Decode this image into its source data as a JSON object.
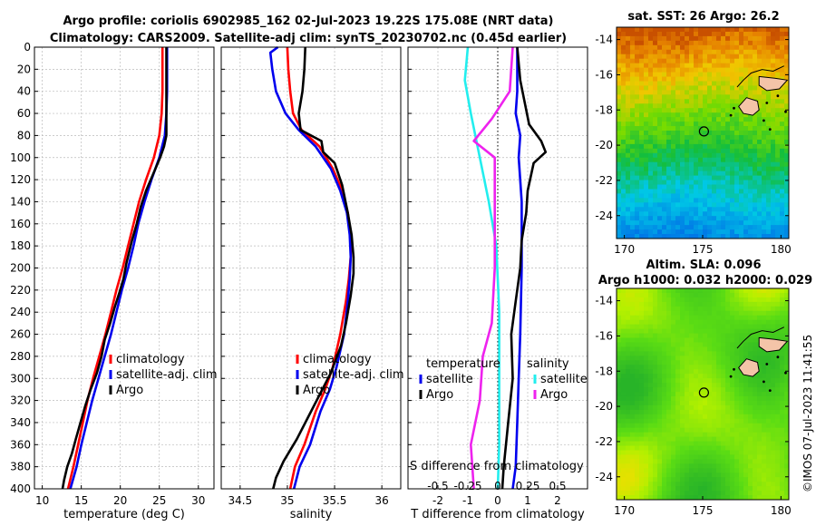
{
  "title_line1": "Argo profile: coriolis 6902985_162 02-Jul-2023 19.22S 175.08E (NRT data)",
  "title_line2": "Climatology: CARS2009. Satellite-adj clim: synTS_20230702.nc (0.45d earlier)",
  "copyright": "©IMOS 07-Jul-2023 11:41:55",
  "colors": {
    "climatology": "#ff0000",
    "satellite": "#0000ee",
    "argo": "#000000",
    "sal_sat": "#22eeee",
    "sal_argo": "#ee22ee"
  },
  "chart_data": [
    {
      "type": "line",
      "id": "temperature",
      "xlabel": "temperature (deg C)",
      "xlim": [
        9,
        32
      ],
      "ylim": [
        0,
        400
      ],
      "reverse_y": true,
      "xticks": [
        10,
        15,
        20,
        25,
        30
      ],
      "yticks": [
        0,
        20,
        40,
        60,
        80,
        100,
        120,
        140,
        160,
        180,
        200,
        220,
        240,
        260,
        280,
        300,
        320,
        340,
        360,
        380,
        400
      ],
      "legend": [
        "climatology",
        "satellite-adj. clim",
        "Argo"
      ],
      "series": [
        {
          "name": "climatology",
          "color_key": "climatology",
          "points": [
            [
              25.4,
              0
            ],
            [
              25.4,
              40
            ],
            [
              25.3,
              60
            ],
            [
              25.0,
              80
            ],
            [
              24.3,
              100
            ],
            [
              23.3,
              120
            ],
            [
              22.4,
              140
            ],
            [
              21.7,
              160
            ],
            [
              21.0,
              180
            ],
            [
              20.3,
              200
            ],
            [
              19.5,
              220
            ],
            [
              18.8,
              240
            ],
            [
              18.1,
              260
            ],
            [
              17.3,
              280
            ],
            [
              16.5,
              300
            ],
            [
              15.8,
              320
            ],
            [
              15.2,
              340
            ],
            [
              14.6,
              360
            ],
            [
              14.0,
              380
            ],
            [
              13.3,
              400
            ]
          ]
        },
        {
          "name": "satellite-adj. clim",
          "color_key": "satellite",
          "points": [
            [
              26.0,
              0
            ],
            [
              26.0,
              40
            ],
            [
              25.9,
              60
            ],
            [
              25.7,
              80
            ],
            [
              25.0,
              100
            ],
            [
              24.0,
              120
            ],
            [
              23.1,
              140
            ],
            [
              22.3,
              160
            ],
            [
              21.7,
              180
            ],
            [
              21.0,
              200
            ],
            [
              20.2,
              220
            ],
            [
              19.5,
              240
            ],
            [
              18.8,
              260
            ],
            [
              18.0,
              280
            ],
            [
              17.2,
              300
            ],
            [
              16.4,
              320
            ],
            [
              15.7,
              340
            ],
            [
              15.0,
              360
            ],
            [
              14.4,
              380
            ],
            [
              13.6,
              400
            ]
          ]
        },
        {
          "name": "Argo",
          "color_key": "argo",
          "points": [
            [
              25.9,
              0
            ],
            [
              25.9,
              40
            ],
            [
              25.9,
              60
            ],
            [
              25.9,
              80
            ],
            [
              25.6,
              90
            ],
            [
              25.1,
              100
            ],
            [
              24.2,
              115
            ],
            [
              23.3,
              130
            ],
            [
              22.6,
              145
            ],
            [
              22.1,
              160
            ],
            [
              21.5,
              175
            ],
            [
              20.8,
              195
            ],
            [
              20.4,
              210
            ],
            [
              19.9,
              222
            ],
            [
              19.3,
              235
            ],
            [
              18.7,
              250
            ],
            [
              18.0,
              265
            ],
            [
              17.6,
              280
            ],
            [
              17.0,
              295
            ],
            [
              16.2,
              310
            ],
            [
              15.5,
              325
            ],
            [
              14.9,
              340
            ],
            [
              14.3,
              355
            ],
            [
              13.8,
              368
            ],
            [
              13.2,
              380
            ],
            [
              12.8,
              392
            ],
            [
              12.6,
              400
            ]
          ]
        }
      ]
    },
    {
      "type": "line",
      "id": "salinity",
      "xlabel": "salinity",
      "xlim": [
        34.3,
        36.2
      ],
      "ylim": [
        0,
        400
      ],
      "reverse_y": true,
      "xticks": [
        34.5,
        35,
        35.5,
        36
      ],
      "legend": [
        "climatology",
        "satellite-adj. clim",
        "Argo"
      ],
      "series": [
        {
          "name": "climatology",
          "color_key": "climatology",
          "points": [
            [
              35.0,
              0
            ],
            [
              35.01,
              20
            ],
            [
              35.03,
              40
            ],
            [
              35.06,
              60
            ],
            [
              35.15,
              75
            ],
            [
              35.34,
              90
            ],
            [
              35.48,
              110
            ],
            [
              35.58,
              130
            ],
            [
              35.64,
              150
            ],
            [
              35.67,
              170
            ],
            [
              35.67,
              190
            ],
            [
              35.65,
              210
            ],
            [
              35.62,
              230
            ],
            [
              35.56,
              260
            ],
            [
              35.48,
              290
            ],
            [
              35.4,
              310
            ],
            [
              35.3,
              330
            ],
            [
              35.18,
              360
            ],
            [
              35.08,
              380
            ],
            [
              35.03,
              400
            ]
          ]
        },
        {
          "name": "satellite-adj. clim",
          "color_key": "satellite",
          "points": [
            [
              34.9,
              0
            ],
            [
              34.82,
              5
            ],
            [
              34.84,
              20
            ],
            [
              34.88,
              40
            ],
            [
              34.98,
              60
            ],
            [
              35.12,
              75
            ],
            [
              35.3,
              90
            ],
            [
              35.46,
              110
            ],
            [
              35.56,
              130
            ],
            [
              35.63,
              150
            ],
            [
              35.66,
              170
            ],
            [
              35.67,
              190
            ],
            [
              35.66,
              210
            ],
            [
              35.64,
              230
            ],
            [
              35.6,
              260
            ],
            [
              35.52,
              290
            ],
            [
              35.45,
              310
            ],
            [
              35.35,
              330
            ],
            [
              35.24,
              360
            ],
            [
              35.13,
              380
            ],
            [
              35.07,
              400
            ]
          ]
        },
        {
          "name": "Argo",
          "color_key": "argo",
          "points": [
            [
              35.19,
              0
            ],
            [
              35.18,
              20
            ],
            [
              35.16,
              40
            ],
            [
              35.12,
              60
            ],
            [
              35.14,
              75
            ],
            [
              35.36,
              85
            ],
            [
              35.38,
              95
            ],
            [
              35.5,
              105
            ],
            [
              35.58,
              125
            ],
            [
              35.64,
              150
            ],
            [
              35.68,
              170
            ],
            [
              35.7,
              190
            ],
            [
              35.7,
              205
            ],
            [
              35.67,
              225
            ],
            [
              35.62,
              250
            ],
            [
              35.57,
              270
            ],
            [
              35.46,
              295
            ],
            [
              35.34,
              315
            ],
            [
              35.22,
              335
            ],
            [
              35.1,
              355
            ],
            [
              34.96,
              375
            ],
            [
              34.88,
              390
            ],
            [
              34.85,
              400
            ]
          ]
        }
      ]
    },
    {
      "type": "line",
      "id": "difference",
      "xlabel": "T difference from climatology",
      "xlabel2": "S difference from climatology",
      "xlim": [
        -3,
        3
      ],
      "ylim": [
        0,
        400
      ],
      "reverse_y": true,
      "xticks": [
        -2,
        -1,
        0,
        1,
        2
      ],
      "xtick_labels": [
        "-2",
        "-1",
        "0",
        "1",
        "2"
      ],
      "s_ticks": [
        [
          "-0.5",
          -2
        ],
        [
          "-0.25",
          -1
        ],
        [
          "0",
          0
        ],
        [
          "0.25",
          1
        ],
        [
          "0.5",
          2
        ]
      ],
      "legend_temperature": {
        "header": "temperature",
        "items": [
          "satellite",
          "Argo"
        ]
      },
      "legend_salinity": {
        "header": "salinity",
        "items": [
          "satellite",
          "Argo"
        ]
      },
      "series": [
        {
          "name": "T satellite",
          "color_key": "satellite",
          "points": [
            [
              0.65,
              0
            ],
            [
              0.65,
              40
            ],
            [
              0.6,
              60
            ],
            [
              0.75,
              80
            ],
            [
              0.7,
              100
            ],
            [
              0.8,
              140
            ],
            [
              0.8,
              200
            ],
            [
              0.75,
              260
            ],
            [
              0.7,
              300
            ],
            [
              0.65,
              340
            ],
            [
              0.6,
              380
            ],
            [
              0.5,
              400
            ]
          ]
        },
        {
          "name": "T Argo",
          "color_key": "argo",
          "points": [
            [
              0.65,
              0
            ],
            [
              0.75,
              30
            ],
            [
              0.9,
              50
            ],
            [
              1.05,
              70
            ],
            [
              1.45,
              85
            ],
            [
              1.6,
              95
            ],
            [
              1.2,
              105
            ],
            [
              1.0,
              130
            ],
            [
              0.95,
              150
            ],
            [
              0.8,
              175
            ],
            [
              0.75,
              200
            ],
            [
              0.6,
              230
            ],
            [
              0.45,
              260
            ],
            [
              0.5,
              300
            ],
            [
              0.35,
              340
            ],
            [
              0.2,
              380
            ],
            [
              0.15,
              400
            ]
          ]
        },
        {
          "name": "S satellite",
          "color_key": "sal_sat",
          "points": [
            [
              -1.0,
              0
            ],
            [
              -1.1,
              30
            ],
            [
              -0.9,
              60
            ],
            [
              -0.6,
              100
            ],
            [
              -0.3,
              140
            ],
            [
              -0.05,
              180
            ],
            [
              0.05,
              240
            ],
            [
              0.05,
              300
            ],
            [
              0.05,
              360
            ],
            [
              0.0,
              400
            ]
          ]
        },
        {
          "name": "S Argo",
          "color_key": "sal_argo",
          "points": [
            [
              0.5,
              0
            ],
            [
              0.4,
              40
            ],
            [
              -0.2,
              65
            ],
            [
              -0.8,
              85
            ],
            [
              -0.1,
              100
            ],
            [
              -0.1,
              140
            ],
            [
              -0.1,
              200
            ],
            [
              -0.2,
              250
            ],
            [
              -0.5,
              280
            ],
            [
              -0.6,
              320
            ],
            [
              -0.9,
              360
            ],
            [
              -0.8,
              400
            ]
          ]
        }
      ]
    },
    {
      "type": "heatmap",
      "id": "sst_map",
      "title": "sat. SST: 26 Argo: 26.2",
      "xlim": [
        169.5,
        180.5
      ],
      "ylim": [
        -25.3,
        -13.3
      ],
      "xticks": [
        170,
        175,
        180
      ],
      "yticks": [
        -14,
        -16,
        -18,
        -20,
        -22,
        -24
      ],
      "marker": [
        175.08,
        -19.22
      ]
    },
    {
      "type": "heatmap",
      "id": "sla_map",
      "title1": "Altim. SLA: 0.096",
      "title2": "Argo h1000: 0.032 h2000: 0.029",
      "xlim": [
        169.5,
        180.5
      ],
      "ylim": [
        -25.3,
        -13.3
      ],
      "xticks": [
        170,
        175,
        180
      ],
      "yticks": [
        -14,
        -16,
        -18,
        -20,
        -22,
        -24
      ],
      "marker": [
        175.08,
        -19.22
      ]
    }
  ]
}
